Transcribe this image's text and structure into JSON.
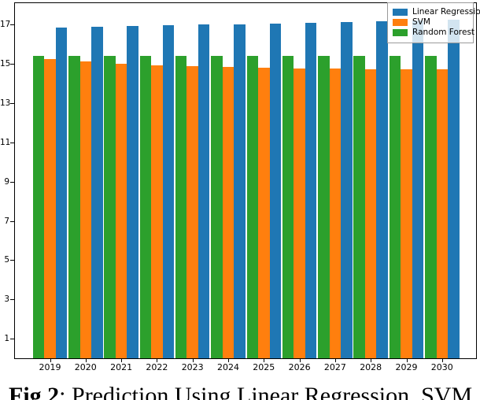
{
  "figure": {
    "caption_label": "Fig 2",
    "caption_rest": ": Prediction Using Linear Regression, SVM"
  },
  "chart_data": {
    "type": "bar",
    "title": "",
    "xlabel": "",
    "ylabel": "",
    "categories": [
      "2019",
      "2020",
      "2021",
      "2022",
      "2023",
      "2024",
      "2025",
      "2026",
      "2027",
      "2028",
      "2029",
      "2030"
    ],
    "series": [
      {
        "name": "Linear Regression",
        "color": "#1f77b4",
        "values": [
          16.86,
          16.89,
          16.93,
          16.96,
          17.0,
          17.03,
          17.07,
          17.1,
          17.14,
          17.17,
          17.21,
          17.24
        ]
      },
      {
        "name": "SVM",
        "color": "#ff7f0e",
        "values": [
          15.25,
          15.12,
          15.01,
          14.93,
          14.88,
          14.84,
          14.81,
          14.78,
          14.76,
          14.74,
          14.73,
          14.72
        ]
      },
      {
        "name": "Random Forest",
        "color": "#2ca02c",
        "values": [
          15.42,
          15.42,
          15.42,
          15.42,
          15.42,
          15.42,
          15.42,
          15.42,
          15.42,
          15.42,
          15.42,
          15.42
        ]
      }
    ],
    "group_draw_order": [
      "Random Forest",
      "SVM",
      "Linear Regression"
    ],
    "yticks": [
      1,
      3,
      5,
      7,
      9,
      11,
      13,
      15,
      17
    ],
    "ylim": [
      0,
      18.1
    ],
    "grid": false,
    "legend_position": "upper right",
    "legend_entries": [
      "Linear Regression",
      "SVM",
      "Random Forest"
    ]
  }
}
